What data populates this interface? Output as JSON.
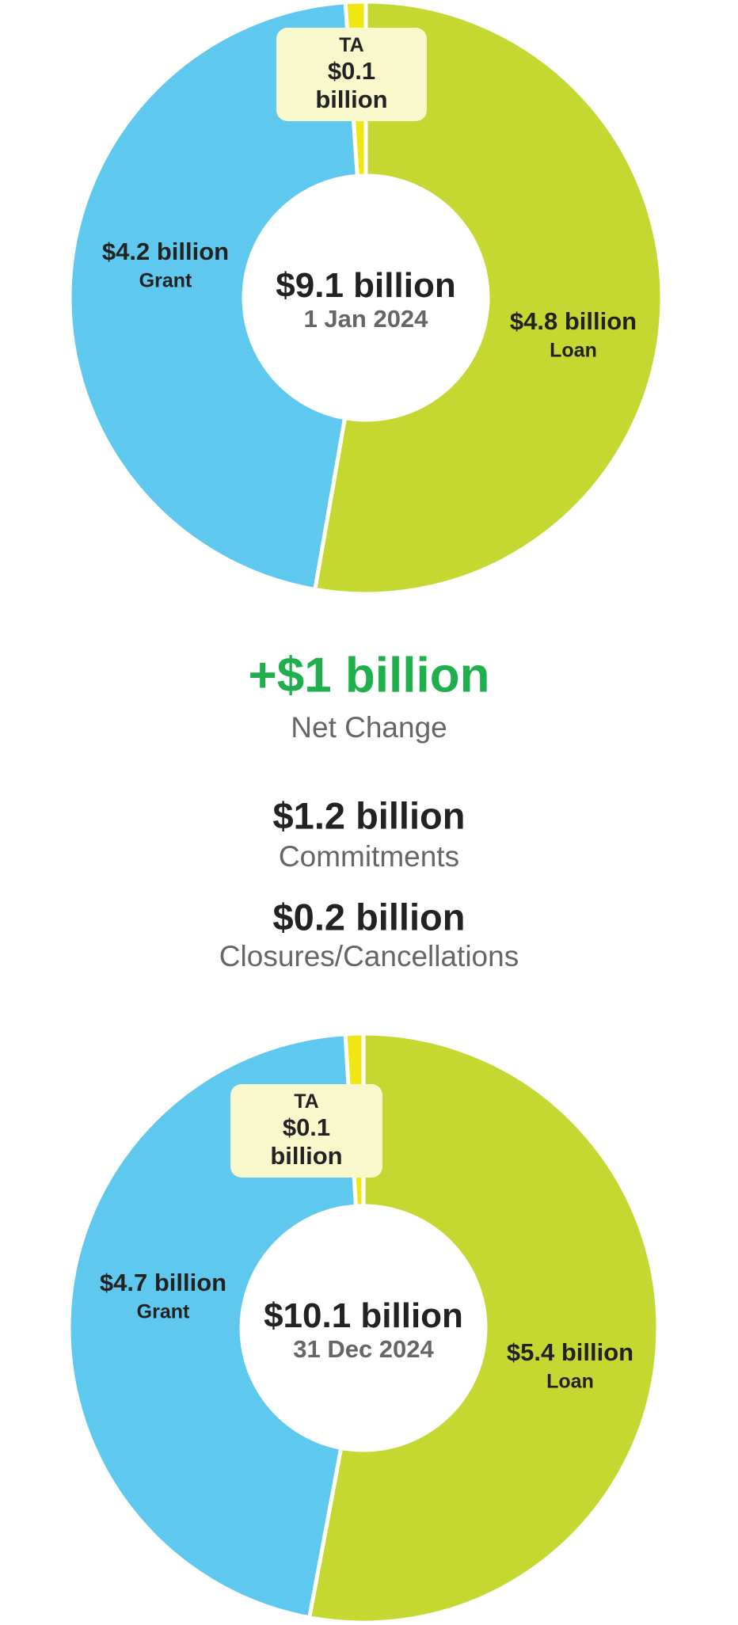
{
  "chart_data": [
    {
      "type": "donut",
      "categories": [
        "Loan",
        "Grant",
        "TA"
      ],
      "values": [
        4.8,
        4.2,
        0.1
      ],
      "value_labels": [
        "$4.8 billion",
        "$4.2 billion",
        "$0.1 billion"
      ],
      "colors": [
        "#c4d831",
        "#5ec8ee",
        "#f0e614"
      ],
      "center_label": "$9.1 billion",
      "center_sublabel": "1 Jan 2024"
    },
    {
      "type": "donut",
      "categories": [
        "Loan",
        "Grant",
        "TA"
      ],
      "values": [
        5.4,
        4.7,
        0.1
      ],
      "value_labels": [
        "$5.4 billion",
        "$4.7 billion",
        "$0.1 billion"
      ],
      "colors": [
        "#c4d831",
        "#5ec8ee",
        "#f0e614"
      ],
      "center_label": "$10.1 billion",
      "center_sublabel": "31 Dec 2024"
    }
  ],
  "summary": {
    "net_change": {
      "value": "+$1 billion",
      "label": "Net Change"
    },
    "commitments": {
      "value": "$1.2 billion",
      "label": "Commitments"
    },
    "closures": {
      "value": "$0.2 billion",
      "label": "Closures/Cancellations"
    }
  }
}
